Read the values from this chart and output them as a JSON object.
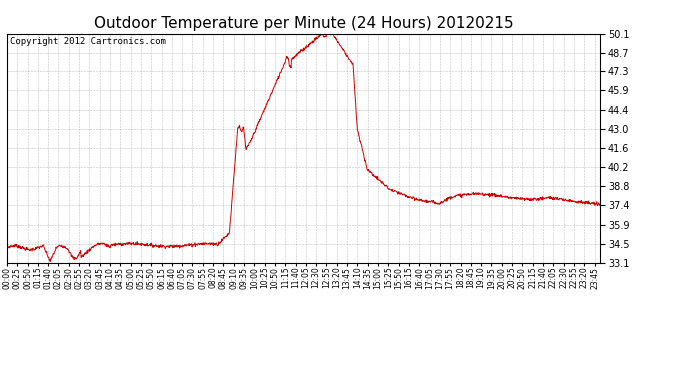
{
  "title": "Outdoor Temperature per Minute (24 Hours) 20120215",
  "copyright": "Copyright 2012 Cartronics.com",
  "line_color": "#cc0000",
  "background_color": "#ffffff",
  "grid_color": "#b0b0b0",
  "ylim": [
    33.1,
    50.1
  ],
  "yticks": [
    33.1,
    34.5,
    35.9,
    37.4,
    38.8,
    40.2,
    41.6,
    43.0,
    44.4,
    45.9,
    47.3,
    48.7,
    50.1
  ],
  "title_fontsize": 11,
  "copyright_fontsize": 6.5,
  "tick_interval_minutes": 25
}
